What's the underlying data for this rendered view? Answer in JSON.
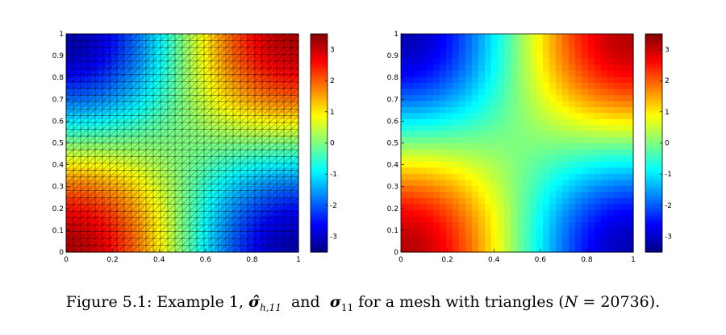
{
  "chart_data": [
    {
      "type": "heatmap",
      "title": "",
      "xlabel": "",
      "ylabel": "",
      "xlim": [
        0,
        1
      ],
      "ylim": [
        0,
        1
      ],
      "x_ticks": [
        "0",
        "0.2",
        "0.4",
        "0.6",
        "0.8",
        "1"
      ],
      "y_ticks": [
        "0",
        "0.1",
        "0.2",
        "0.3",
        "0.4",
        "0.5",
        "0.6",
        "0.7",
        "0.8",
        "0.9",
        "1"
      ],
      "colorbar": {
        "range": [
          -3.5,
          3.5
        ],
        "ticks": [
          "3",
          "2",
          "1",
          "0",
          "-1",
          "-2",
          "-3"
        ]
      },
      "mesh": "triangles",
      "field": "pi*cos(pi*x)*cos(pi*y)"
    },
    {
      "type": "heatmap",
      "title": "",
      "xlabel": "",
      "ylabel": "",
      "xlim": [
        0,
        1
      ],
      "ylim": [
        0,
        1
      ],
      "x_ticks": [
        "0",
        "0.2",
        "0.4",
        "0.6",
        "0.8",
        "1"
      ],
      "y_ticks": [
        "0",
        "0.1",
        "0.2",
        "0.3",
        "0.4",
        "0.5",
        "0.6",
        "0.7",
        "0.8",
        "0.9",
        "1"
      ],
      "colorbar": {
        "range": [
          -3.5,
          3.5
        ],
        "ticks": [
          "3",
          "2",
          "1",
          "0",
          "-1",
          "-2",
          "-3"
        ]
      },
      "mesh": "none",
      "field": "pi*cos(pi*x)*cos(pi*y)"
    }
  ],
  "caption": {
    "prefix": "Figure 5.1: Example 1,",
    "sym1_base": "σ̂",
    "sym1_sub": "h,11",
    "and": "and",
    "sym2_base": "σ",
    "sym2_sub": "11",
    "middle": "for a mesh with triangles (",
    "n_var": "N",
    "n_eq": " = 20736).",
    "close": ""
  }
}
